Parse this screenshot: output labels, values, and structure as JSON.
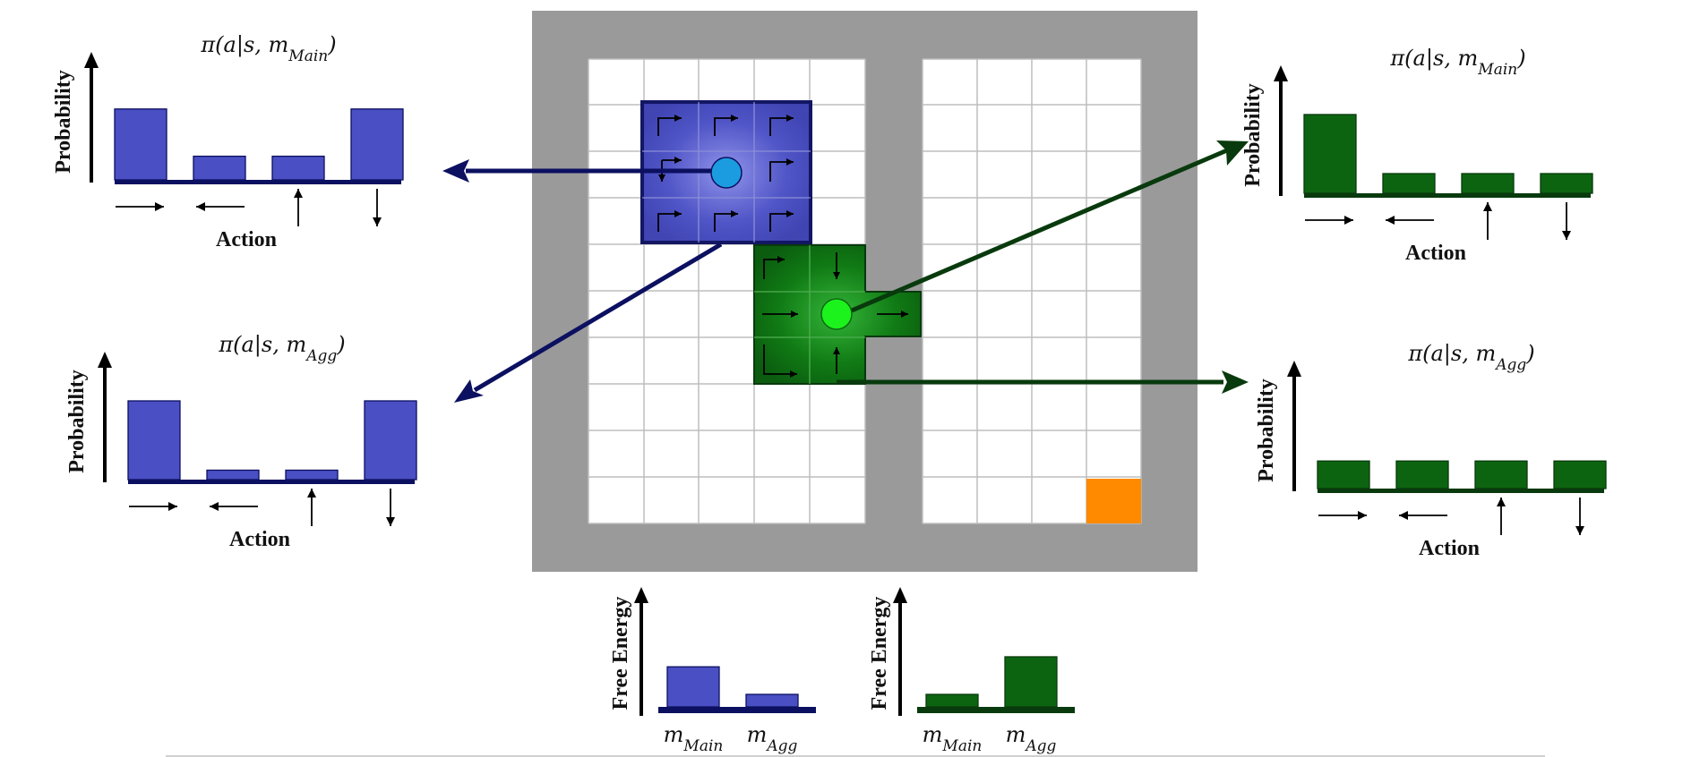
{
  "colors": {
    "blue": "#4a4fc4",
    "blue_dark": "#0c1060",
    "green": "#0d6410",
    "green_dark": "#083a0d",
    "agent_blue": "#1c9ce0",
    "agent_green": "#1cf21c",
    "goal": "#ff8a00",
    "wall": "#9a9a9a",
    "grid_line": "#bdbdbd"
  },
  "panels": [
    {
      "id": "blue-main",
      "title": "π(a|s, m_Main)",
      "ylabel": "Probability",
      "xlabel": "Action",
      "values": [
        0.9,
        0.3,
        0.3,
        0.9
      ]
    },
    {
      "id": "blue-agg",
      "title": "π(a|s, m_Agg)",
      "ylabel": "Probability",
      "xlabel": "Action",
      "values": [
        1.0,
        0.12,
        0.12,
        1.0
      ]
    },
    {
      "id": "green-main",
      "title": "π(a|s, m_Main)",
      "ylabel": "Probability",
      "xlabel": "Action",
      "values": [
        1.0,
        0.25,
        0.25,
        0.25
      ]
    },
    {
      "id": "green-agg",
      "title": "π(a|s, m_Agg)",
      "ylabel": "Probability",
      "xlabel": "Action",
      "values": [
        0.35,
        0.35,
        0.35,
        0.35
      ]
    }
  ],
  "action_icons": [
    "right-arrow-icon",
    "left-arrow-icon",
    "up-arrow-icon",
    "down-arrow-icon"
  ],
  "free_energy": [
    {
      "id": "blue-fe",
      "ylabel": "Free Energy",
      "categories": [
        "m_Main",
        "m_Agg"
      ],
      "values": [
        0.8,
        0.25
      ]
    },
    {
      "id": "green-fe",
      "ylabel": "Free Energy",
      "categories": [
        "m_Main",
        "m_Agg"
      ],
      "values": [
        0.25,
        1.0
      ]
    }
  ],
  "grid": {
    "left_cols": 5,
    "right_cols": 4,
    "rows": 10
  }
}
